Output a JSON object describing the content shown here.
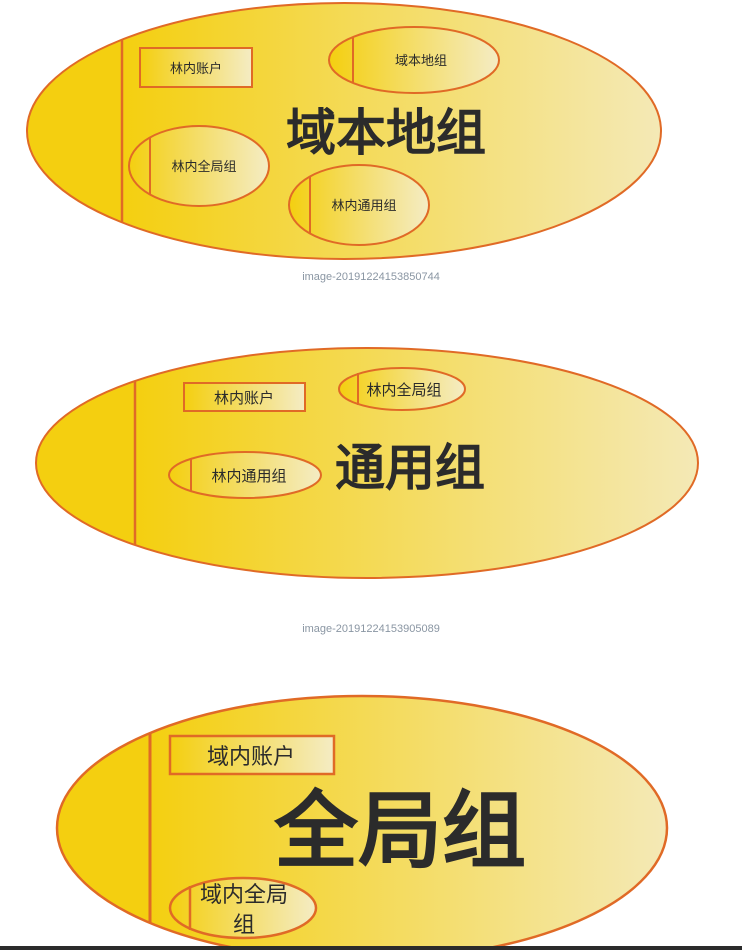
{
  "diagrams": [
    {
      "title": "域本地组",
      "members": [
        "林内账户",
        "域本地组",
        "林内全局组",
        "林内通用组"
      ],
      "caption": "image-20191224153850744"
    },
    {
      "title": "通用组",
      "members": [
        "林内账户",
        "林内全局组",
        "林内通用组"
      ],
      "caption": "image-20191224153905089"
    },
    {
      "title": "全局组",
      "members": [
        "域内账户",
        "域内全局",
        "组"
      ]
    }
  ],
  "colors": {
    "fill_dark": "#f4cf10",
    "fill_light": "#f4e9b6",
    "stroke": "#e06a26",
    "text": "#2b2b2b",
    "caption": "#8a96a3"
  }
}
